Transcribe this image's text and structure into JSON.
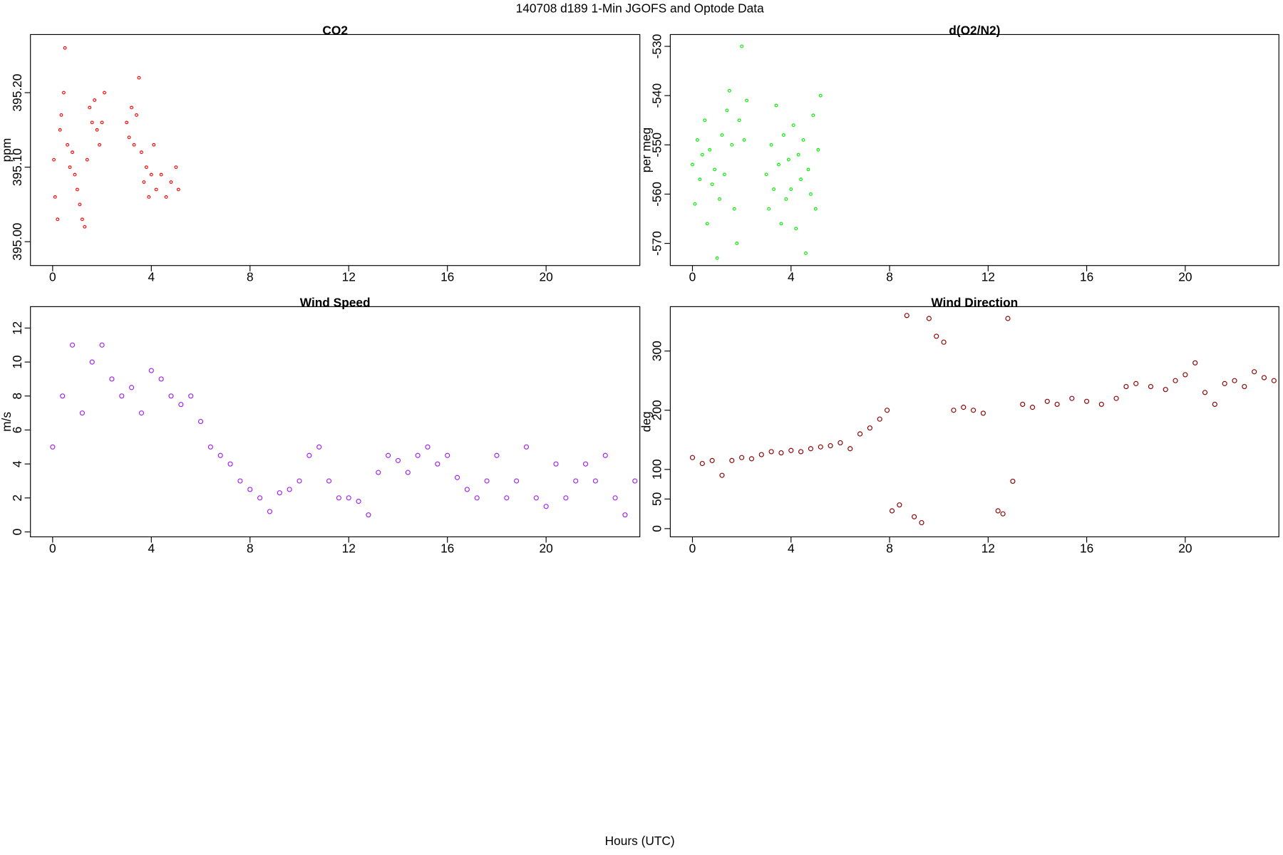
{
  "title": "140708   d189   1-Min  JGOFS and Optode Data",
  "xlabel": "Hours (UTC)",
  "chart_data": [
    {
      "type": "scatter",
      "title": "CO2",
      "ylabel": "ppm",
      "color": "#ff0000",
      "xlim": [
        -0.9,
        23.8
      ],
      "xticks": [
        0,
        4,
        8,
        12,
        16,
        20
      ],
      "ylim": [
        394.968,
        395.278
      ],
      "yticks": [
        {
          "value": 395.0,
          "label": "395.00"
        },
        {
          "value": 395.1,
          "label": "395.10"
        },
        {
          "value": 395.2,
          "label": "395.20"
        }
      ],
      "x": [
        0.05,
        0.1,
        0.2,
        0.3,
        0.35,
        0.45,
        0.5,
        0.6,
        0.7,
        0.8,
        0.9,
        1.0,
        1.1,
        1.2,
        1.3,
        1.4,
        1.5,
        1.6,
        1.7,
        1.8,
        1.9,
        2.0,
        2.1,
        3.0,
        3.1,
        3.2,
        3.3,
        3.4,
        3.5,
        3.6,
        3.7,
        3.8,
        3.9,
        4.0,
        4.1,
        4.2,
        4.4,
        4.6,
        4.8,
        5.0,
        5.1
      ],
      "values": [
        395.11,
        395.06,
        395.03,
        395.15,
        395.17,
        395.2,
        395.26,
        395.13,
        395.1,
        395.12,
        395.09,
        395.07,
        395.05,
        395.03,
        395.02,
        395.11,
        395.18,
        395.16,
        395.19,
        395.15,
        395.13,
        395.16,
        395.2,
        395.16,
        395.14,
        395.18,
        395.13,
        395.17,
        395.22,
        395.12,
        395.08,
        395.1,
        395.06,
        395.09,
        395.13,
        395.07,
        395.09,
        395.06,
        395.08,
        395.1,
        395.07
      ]
    },
    {
      "type": "scatter",
      "title": "d(O2/N2)",
      "ylabel": "per meg",
      "color": "#00ee00",
      "xlim": [
        -0.9,
        23.8
      ],
      "xticks": [
        0,
        4,
        8,
        12,
        16,
        20
      ],
      "ylim": [
        -574.5,
        -527.6
      ],
      "yticks": [
        -570,
        -560,
        -550,
        -540,
        -530
      ],
      "x": [
        0.0,
        0.1,
        0.2,
        0.3,
        0.4,
        0.5,
        0.6,
        0.7,
        0.8,
        0.9,
        1.0,
        1.1,
        1.2,
        1.3,
        1.4,
        1.5,
        1.6,
        1.7,
        1.8,
        1.9,
        2.0,
        2.1,
        2.2,
        3.0,
        3.1,
        3.2,
        3.3,
        3.4,
        3.5,
        3.6,
        3.7,
        3.8,
        3.9,
        4.0,
        4.1,
        4.2,
        4.3,
        4.4,
        4.5,
        4.6,
        4.7,
        4.8,
        4.9,
        5.0,
        5.1,
        5.2
      ],
      "values": [
        -554,
        -562,
        -549,
        -557,
        -552,
        -545,
        -566,
        -551,
        -558,
        -555,
        -573,
        -561,
        -548,
        -556,
        -543,
        -539,
        -550,
        -563,
        -570,
        -545,
        -530,
        -549,
        -541,
        -556,
        -563,
        -550,
        -559,
        -542,
        -554,
        -566,
        -548,
        -561,
        -553,
        -559,
        -546,
        -567,
        -552,
        -557,
        -549,
        -572,
        -555,
        -560,
        -544,
        -563,
        -551,
        -540
      ]
    },
    {
      "type": "scatter",
      "title": "Wind Speed",
      "ylabel": "m/s",
      "color": "#a020f0",
      "xlim": [
        -0.9,
        23.8
      ],
      "xticks": [
        0,
        4,
        8,
        12,
        16,
        20
      ],
      "ylim": [
        -0.29,
        13.26
      ],
      "yticks": [
        0,
        2,
        4,
        6,
        8,
        10,
        12
      ],
      "x": [
        0,
        0.4,
        0.8,
        1.2,
        1.6,
        2.0,
        2.4,
        2.8,
        3.2,
        3.6,
        4.0,
        4.4,
        4.8,
        5.2,
        5.6,
        6.0,
        6.4,
        6.8,
        7.2,
        7.6,
        8.0,
        8.4,
        8.8,
        9.2,
        9.6,
        10.0,
        10.4,
        10.8,
        11.2,
        11.6,
        12.0,
        12.4,
        12.8,
        13.2,
        13.6,
        14.0,
        14.4,
        14.8,
        15.2,
        15.6,
        16.0,
        16.4,
        16.8,
        17.2,
        17.6,
        18.0,
        18.4,
        18.8,
        19.2,
        19.6,
        20.0,
        20.4,
        20.8,
        21.2,
        21.6,
        22.0,
        22.4,
        22.8,
        23.2,
        23.6
      ],
      "values": [
        5,
        8,
        11,
        7,
        10,
        11,
        9,
        8,
        8.5,
        7,
        9.5,
        9,
        8,
        7.5,
        8,
        6.5,
        5,
        4.5,
        4,
        3,
        2.5,
        2,
        1.2,
        2.3,
        2.5,
        3,
        4.5,
        5,
        3,
        2,
        2,
        1.8,
        1,
        3.5,
        4.5,
        4.2,
        3.5,
        4.5,
        5,
        4,
        4.5,
        3.2,
        2.5,
        2,
        3,
        4.5,
        2,
        3,
        5,
        2,
        1.5,
        4,
        2,
        3,
        4,
        3,
        4.5,
        2,
        1,
        3
      ]
    },
    {
      "type": "scatter",
      "title": "Wind Direction",
      "ylabel": "deg",
      "color": "#8b0000",
      "xlim": [
        -0.9,
        23.8
      ],
      "xticks": [
        0,
        4,
        8,
        12,
        16,
        20
      ],
      "ylim": [
        -13.9,
        375
      ],
      "yticks": [
        0,
        50,
        100,
        200,
        300
      ],
      "x": [
        0,
        0.4,
        0.8,
        1.2,
        1.6,
        2.0,
        2.4,
        2.8,
        3.2,
        3.6,
        4.0,
        4.4,
        4.8,
        5.2,
        5.6,
        6.0,
        6.4,
        6.8,
        7.2,
        7.6,
        7.9,
        8.1,
        8.4,
        8.7,
        9.0,
        9.3,
        9.6,
        9.9,
        10.2,
        10.6,
        11.0,
        11.4,
        11.8,
        12.4,
        12.6,
        12.8,
        13.0,
        13.4,
        13.8,
        14.4,
        14.8,
        15.4,
        16.0,
        16.6,
        17.2,
        17.6,
        18.0,
        18.6,
        19.2,
        19.6,
        20.0,
        20.4,
        20.8,
        21.2,
        21.6,
        22.0,
        22.4,
        22.8,
        23.2,
        23.6
      ],
      "values": [
        120,
        110,
        115,
        90,
        115,
        120,
        118,
        125,
        130,
        128,
        132,
        130,
        135,
        138,
        140,
        145,
        135,
        160,
        170,
        185,
        200,
        30,
        40,
        360,
        20,
        10,
        355,
        325,
        315,
        200,
        205,
        200,
        195,
        30,
        25,
        355,
        80,
        210,
        205,
        215,
        210,
        220,
        215,
        210,
        220,
        240,
        245,
        240,
        235,
        250,
        260,
        280,
        230,
        210,
        245,
        250,
        240,
        265,
        255,
        250
      ]
    }
  ]
}
